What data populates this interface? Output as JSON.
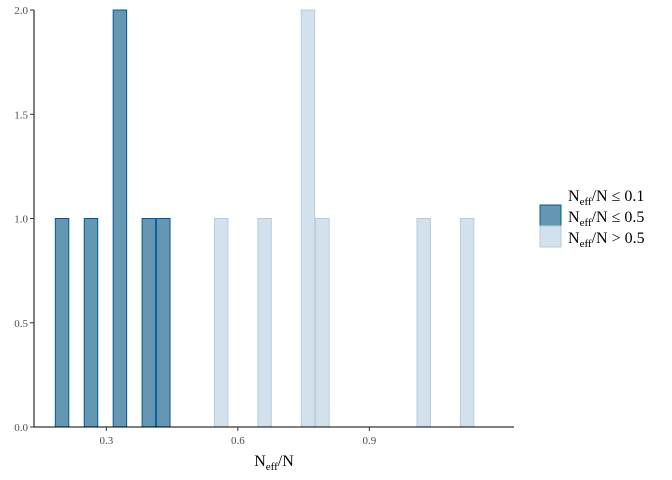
{
  "chart_data": {
    "type": "bar",
    "subtype": "histogram",
    "xlabel": {
      "main": "N",
      "sub": "eff",
      "tail": "/N"
    },
    "ylabel": "",
    "x_ticks": [
      0.3,
      0.6,
      0.9
    ],
    "x_tick_labels": [
      "0.3",
      "0.6",
      "0.9"
    ],
    "y_ticks": [
      0.0,
      0.5,
      1.0,
      1.5,
      2.0
    ],
    "y_tick_labels": [
      "0.0",
      "0.5",
      "1.0",
      "1.5",
      "2.0"
    ],
    "xlim": [
      0.135,
      1.23
    ],
    "ylim": [
      0,
      2.0
    ],
    "bin_width": 0.033,
    "grid": false,
    "legend_position": "right",
    "series": [
      {
        "name": {
          "main": "N",
          "sub": "eff",
          "tail": "/N ≤ 0.1"
        },
        "color": "#F8766D",
        "fill_opacity": 0,
        "stroke": "none",
        "bins": []
      },
      {
        "name": {
          "main": "N",
          "sub": "eff",
          "tail": "/N ≤ 0.5"
        },
        "color": "#6497B1",
        "stroke": "#005B96",
        "fill_opacity": 1,
        "bins": [
          {
            "x": 0.199,
            "count": 1
          },
          {
            "x": 0.265,
            "count": 1
          },
          {
            "x": 0.331,
            "count": 2
          },
          {
            "x": 0.397,
            "count": 1
          },
          {
            "x": 0.43,
            "count": 1
          }
        ]
      },
      {
        "name": {
          "main": "N",
          "sub": "eff",
          "tail": "/N > 0.5"
        },
        "color": "#D2E1EC",
        "stroke": "#B3CDE0",
        "fill_opacity": 1,
        "bins": [
          {
            "x": 0.562,
            "count": 1
          },
          {
            "x": 0.661,
            "count": 1
          },
          {
            "x": 0.76,
            "count": 2
          },
          {
            "x": 0.793,
            "count": 1
          },
          {
            "x": 1.024,
            "count": 1
          },
          {
            "x": 1.123,
            "count": 1
          }
        ]
      }
    ]
  }
}
